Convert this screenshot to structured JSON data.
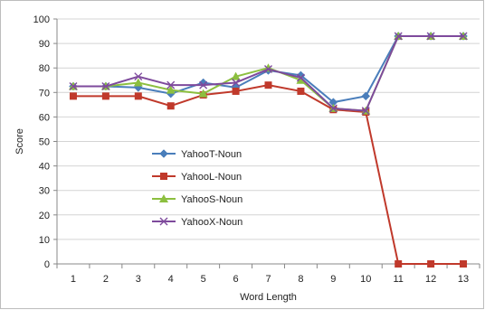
{
  "chart_data": {
    "type": "line",
    "title": "",
    "xlabel": "Word Length",
    "ylabel": "Score",
    "x": [
      1,
      2,
      3,
      4,
      5,
      6,
      7,
      8,
      9,
      10,
      11,
      12,
      13
    ],
    "ylim": [
      0,
      100
    ],
    "yticks": [
      0,
      10,
      20,
      30,
      40,
      50,
      60,
      70,
      80,
      90,
      100
    ],
    "grid": "horizontal",
    "legend_position": "center-left",
    "series": [
      {
        "name": "YahooT-Noun",
        "color": "#4a7ebb",
        "marker": "diamond",
        "values": [
          72.5,
          72.5,
          72,
          69.5,
          74,
          72,
          79,
          77,
          66,
          68.5,
          93,
          93,
          93
        ]
      },
      {
        "name": "YahooL-Noun",
        "color": "#c0392b",
        "marker": "square",
        "values": [
          68.5,
          68.5,
          68.5,
          64.5,
          69,
          70.5,
          73,
          70.5,
          63,
          62,
          0,
          0,
          0
        ]
      },
      {
        "name": "YahooS-Noun",
        "color": "#8cbf3f",
        "marker": "triangle",
        "values": [
          72.5,
          72.5,
          74,
          71,
          69.5,
          76.5,
          80,
          75,
          63.5,
          62.5,
          93,
          93,
          93
        ]
      },
      {
        "name": "YahooX-Noun",
        "color": "#7e4a9c",
        "marker": "x",
        "values": [
          72.5,
          72.5,
          76.5,
          73,
          73,
          74,
          79.5,
          76,
          63.5,
          62.5,
          93,
          93,
          93
        ]
      }
    ]
  }
}
